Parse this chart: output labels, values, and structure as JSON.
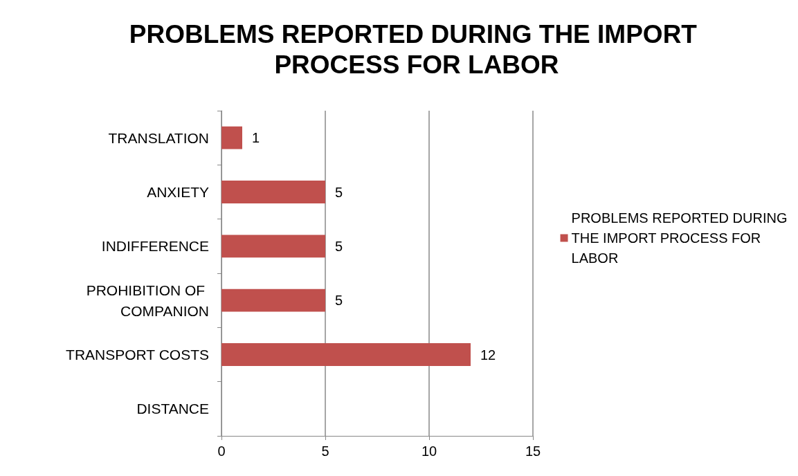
{
  "chart_data": {
    "type": "bar",
    "orientation": "horizontal",
    "title": "PROBLEMS REPORTED DURING THE IMPORT PROCESS FOR LABOR",
    "categories": [
      "TRANSLATION",
      "ANXIETY",
      "INDIFFERENCE",
      "PROHIBITION OF COMPANION",
      "TRANSPORT COSTS",
      "DISTANCE"
    ],
    "series": [
      {
        "name": "PROBLEMS REPORTED DURING THE IMPORT PROCESS FOR LABOR",
        "color": "#c0504d",
        "values": [
          1,
          5,
          5,
          5,
          12,
          null
        ]
      }
    ],
    "xlim": [
      0,
      15
    ],
    "xticks": [
      0,
      5,
      10,
      15
    ],
    "grid": "x",
    "legend": "right",
    "data_labels": true
  }
}
